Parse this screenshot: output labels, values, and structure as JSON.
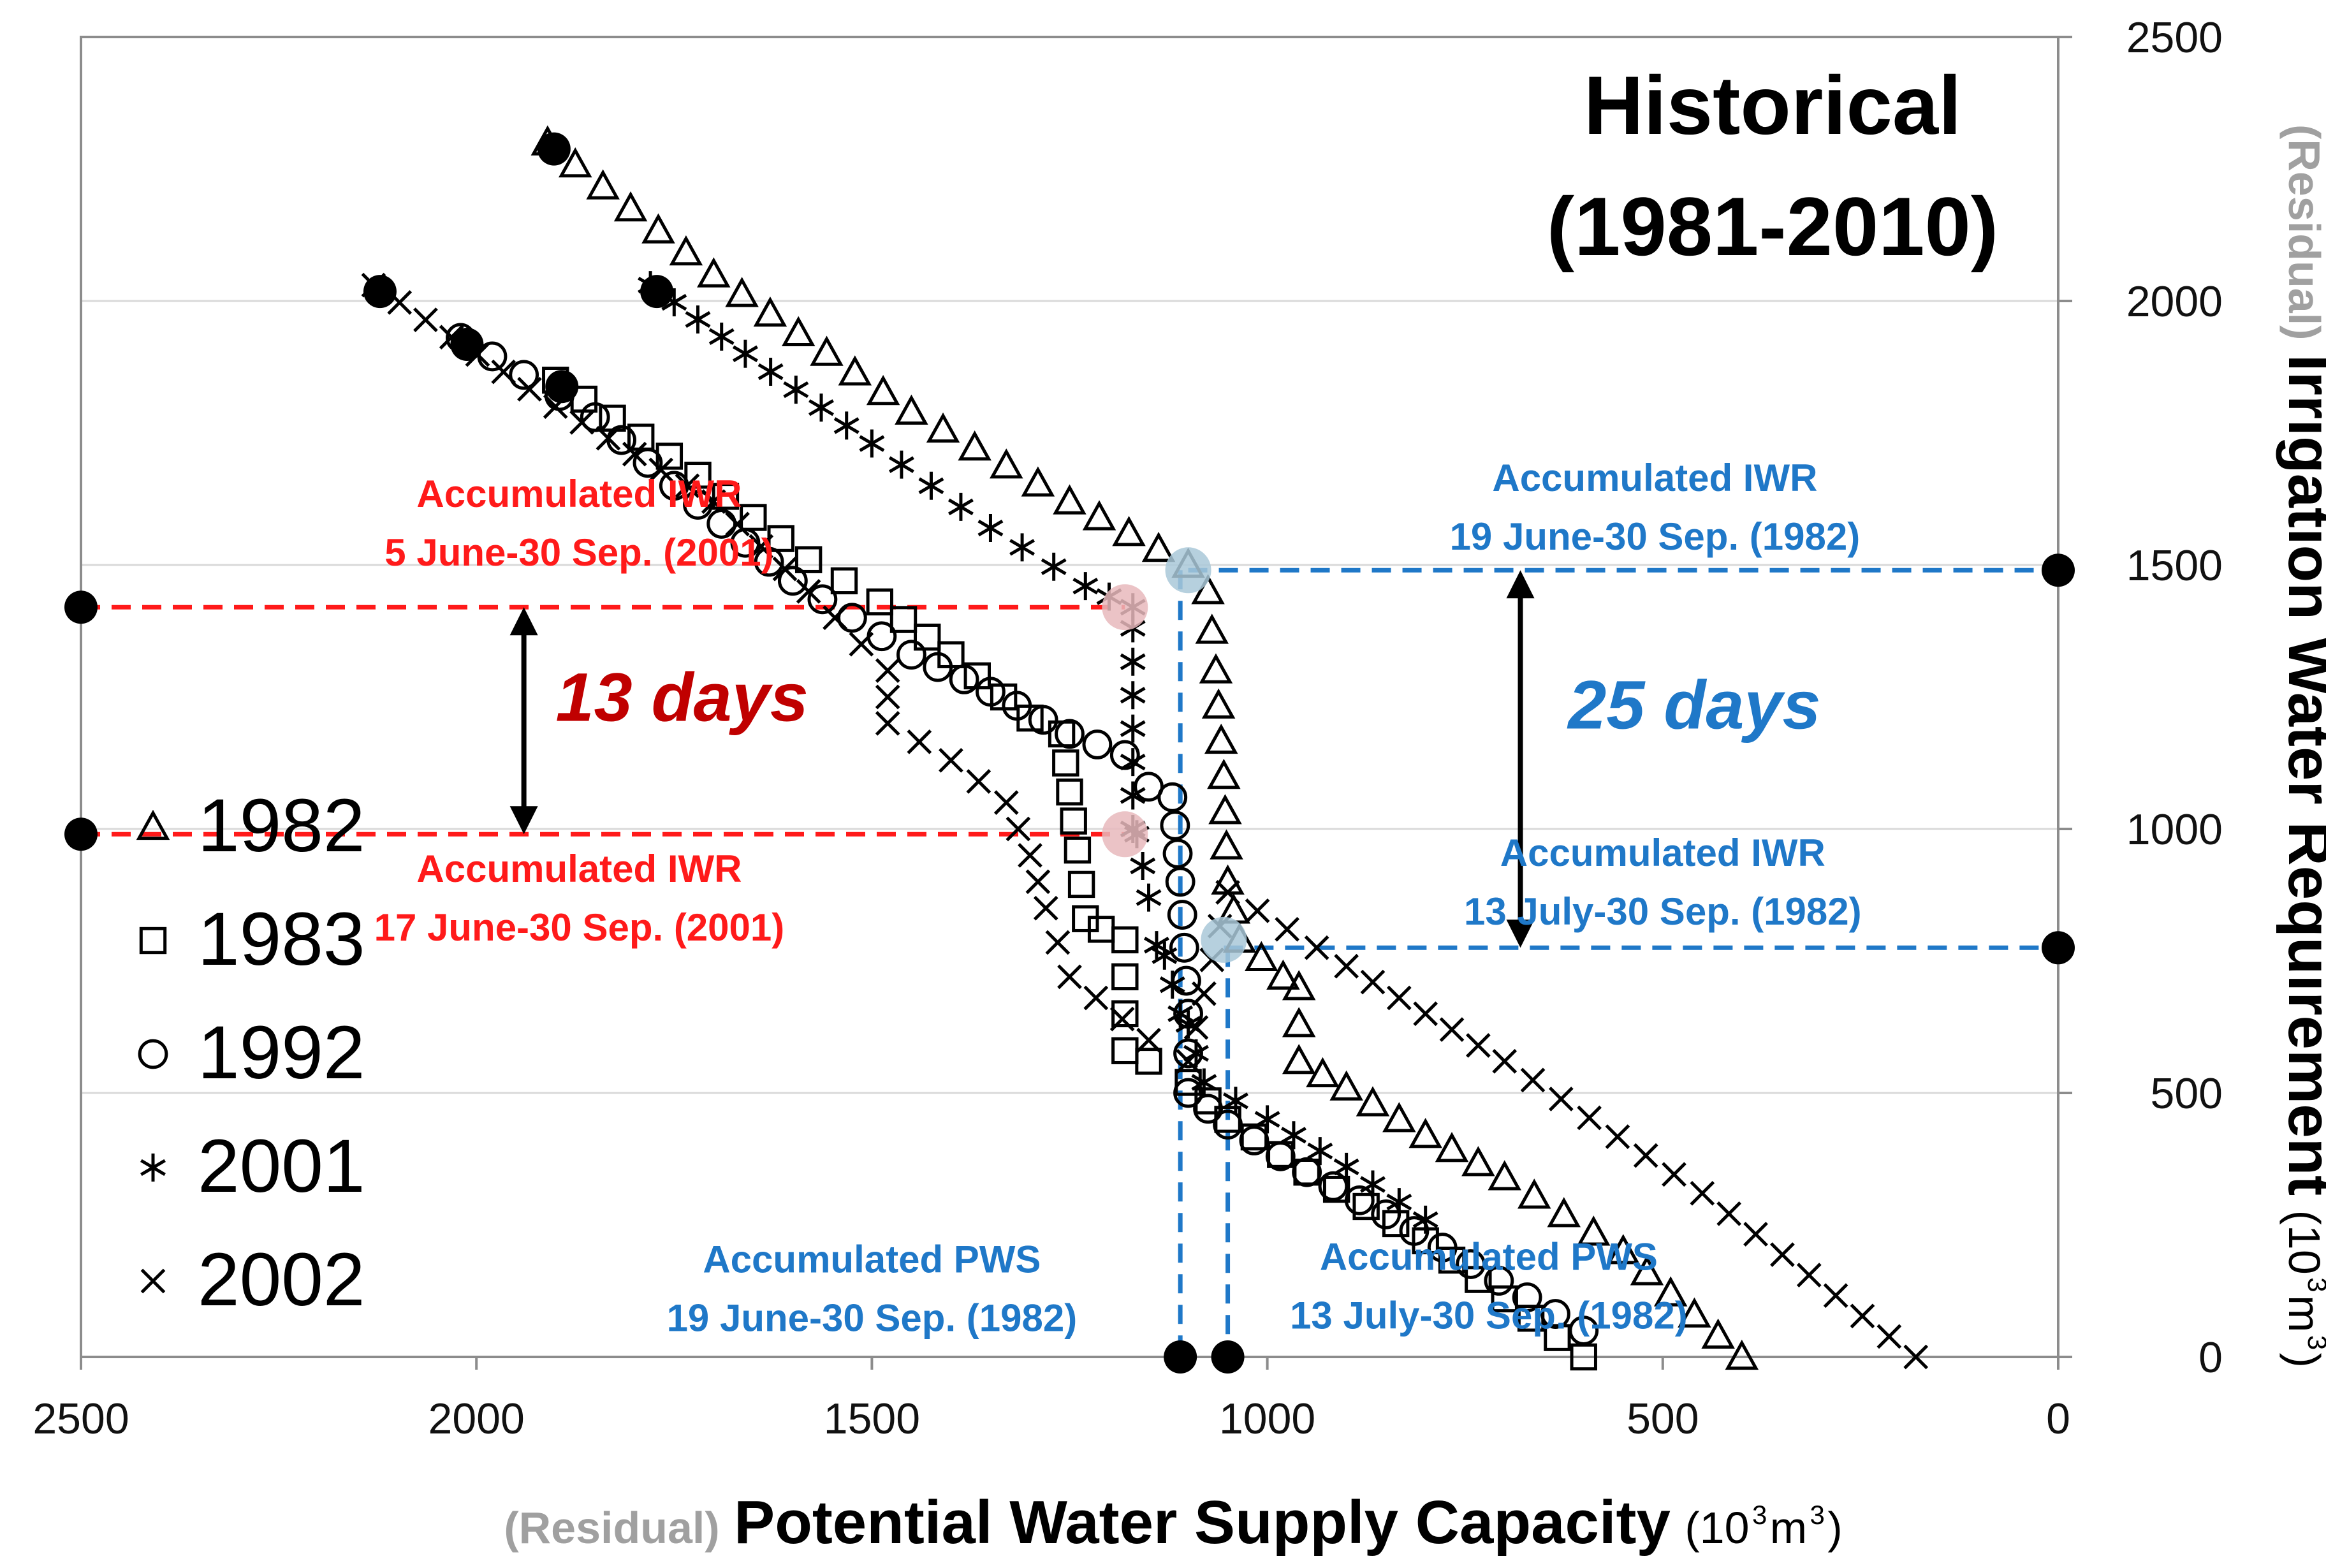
{
  "chart_data": {
    "type": "scatter",
    "title_lines": [
      "Historical",
      "(1981-2010)"
    ],
    "xlabel": {
      "prefix": "(Residual)",
      "main": "Potential Water Supply Capacity",
      "unit_open": "(10",
      "unit_sup1": "3",
      "unit_mid": " m",
      "unit_sup2": "3",
      "unit_close": ")"
    },
    "ylabel": {
      "prefix": "(Residual)",
      "main": "Irrigation Water Requirement",
      "unit_open": "(10",
      "unit_sup1": "3",
      "unit_mid": " m",
      "unit_sup2": "3",
      "unit_close": ")"
    },
    "xlim": [
      2500,
      0
    ],
    "ylim": [
      0,
      2500
    ],
    "x_ticks": [
      "2500",
      "2000",
      "1500",
      "1000",
      "500",
      "0"
    ],
    "y_ticks": [
      "0",
      "500",
      "1000",
      "1500",
      "2000",
      "2500"
    ],
    "grid": "horizontal",
    "legend": {
      "position": "lower-left",
      "entries": [
        {
          "year": "1982",
          "marker": "triangle"
        },
        {
          "year": "1983",
          "marker": "square"
        },
        {
          "year": "1992",
          "marker": "circle"
        },
        {
          "year": "2001",
          "marker": "asterisk"
        },
        {
          "year": "2002",
          "marker": "cross"
        }
      ]
    },
    "series": [
      {
        "name": "1982",
        "marker": "triangle",
        "points": [
          [
            1910,
            2300
          ],
          [
            1700,
            2050
          ],
          [
            1450,
            1790
          ],
          [
            1250,
            1620
          ],
          [
            1100,
            1500
          ],
          [
            1075,
            1450
          ],
          [
            1065,
            1300
          ],
          [
            1055,
            1100
          ],
          [
            1050,
            900
          ],
          [
            1035,
            790
          ],
          [
            980,
            720
          ],
          [
            960,
            700
          ],
          [
            960,
            560
          ],
          [
            900,
            510
          ],
          [
            800,
            420
          ],
          [
            700,
            340
          ],
          [
            550,
            200
          ],
          [
            400,
            0
          ]
        ]
      },
      {
        "name": "1983",
        "marker": "square",
        "points": [
          [
            1900,
            1850
          ],
          [
            1720,
            1670
          ],
          [
            1580,
            1510
          ],
          [
            1490,
            1430
          ],
          [
            1400,
            1330
          ],
          [
            1300,
            1210
          ],
          [
            1260,
            1180
          ],
          [
            1240,
            960
          ],
          [
            1230,
            830
          ],
          [
            1210,
            810
          ],
          [
            1180,
            790
          ],
          [
            1180,
            580
          ],
          [
            1150,
            560
          ],
          [
            1100,
            520
          ],
          [
            1050,
            450
          ],
          [
            950,
            350
          ],
          [
            800,
            220
          ],
          [
            600,
            0
          ]
        ]
      },
      {
        "name": "1992",
        "marker": "circle",
        "points": [
          [
            2020,
            1930
          ],
          [
            1940,
            1860
          ],
          [
            1850,
            1780
          ],
          [
            1750,
            1650
          ],
          [
            1600,
            1470
          ],
          [
            1450,
            1330
          ],
          [
            1350,
            1260
          ],
          [
            1250,
            1180
          ],
          [
            1180,
            1140
          ],
          [
            1150,
            1080
          ],
          [
            1120,
            1060
          ],
          [
            1110,
            900
          ],
          [
            1100,
            650
          ],
          [
            1100,
            500
          ],
          [
            1050,
            440
          ],
          [
            950,
            350
          ],
          [
            850,
            270
          ],
          [
            600,
            50
          ]
        ]
      },
      {
        "name": "2001",
        "marker": "asterisk",
        "points": [
          [
            1780,
            2030
          ],
          [
            1660,
            1900
          ],
          [
            1500,
            1730
          ],
          [
            1350,
            1570
          ],
          [
            1230,
            1460
          ],
          [
            1170,
            1420
          ],
          [
            1170,
            1380
          ],
          [
            1170,
            1000
          ],
          [
            1165,
            990
          ],
          [
            1150,
            870
          ],
          [
            1140,
            780
          ],
          [
            1130,
            760
          ],
          [
            1110,
            650
          ],
          [
            1100,
            630
          ],
          [
            1080,
            520
          ],
          [
            1000,
            450
          ],
          [
            900,
            360
          ],
          [
            800,
            260
          ]
        ]
      },
      {
        "name": "2002",
        "marker": "cross",
        "points": [
          [
            2130,
            2030
          ],
          [
            1900,
            1800
          ],
          [
            1700,
            1620
          ],
          [
            1580,
            1450
          ],
          [
            1480,
            1300
          ],
          [
            1480,
            1200
          ],
          [
            1400,
            1130
          ],
          [
            1330,
            1050
          ],
          [
            1300,
            950
          ],
          [
            1280,
            850
          ],
          [
            1250,
            720
          ],
          [
            1150,
            600
          ],
          [
            1100,
            560
          ],
          [
            1050,
            880
          ],
          [
            900,
            740
          ],
          [
            700,
            560
          ],
          [
            450,
            310
          ],
          [
            180,
            0
          ]
        ]
      }
    ],
    "highlights": [
      {
        "x": 1180,
        "y": 1420,
        "color": "#e8b8bc"
      },
      {
        "x": 1180,
        "y": 990,
        "color": "#e8b8bc"
      },
      {
        "x": 1100,
        "y": 1490,
        "color": "#a9c8d8"
      },
      {
        "x": 1055,
        "y": 790,
        "color": "#a9c8d8"
      }
    ],
    "reference_lines": [
      {
        "axis": "y",
        "value": 1420,
        "x_from": 2500,
        "x_to": 1180,
        "color": "#ff1a1a"
      },
      {
        "axis": "y",
        "value": 990,
        "x_from": 2500,
        "x_to": 1180,
        "color": "#ff1a1a"
      },
      {
        "axis": "y",
        "value": 1490,
        "x_from": 1100,
        "x_to": 0,
        "color": "#1f78c8"
      },
      {
        "axis": "y",
        "value": 775,
        "x_from": 1055,
        "x_to": 0,
        "color": "#1f78c8"
      },
      {
        "axis": "x",
        "value": 1110,
        "y_from": 1490,
        "y_to": 0,
        "color": "#1f78c8"
      },
      {
        "axis": "x",
        "value": 1050,
        "y_from": 775,
        "y_to": 0,
        "color": "#1f78c8"
      }
    ],
    "endpoint_dots": [
      {
        "x": 2500,
        "y": 1420
      },
      {
        "x": 2500,
        "y": 990
      },
      {
        "x": 0,
        "y": 1490
      },
      {
        "x": 0,
        "y": 775
      },
      {
        "x": 1110,
        "y": 0
      },
      {
        "x": 1050,
        "y": 0
      }
    ],
    "arrows": [
      {
        "x": 1940,
        "y_from": 1420,
        "y_to": 990,
        "label": "13 days",
        "label_color": "#c00000",
        "label_x": 1740,
        "label_y": 1205
      },
      {
        "x": 680,
        "y_from": 1490,
        "y_to": 775,
        "label": "25 days",
        "label_color": "#1f78c8",
        "label_x": 460,
        "label_y": 1190
      }
    ],
    "annotations": [
      {
        "lines": [
          "Accumulated IWR",
          "5 June-30 Sep. (2001)"
        ],
        "color": "#ff1a1a",
        "x": 1870,
        "y": 1610
      },
      {
        "lines": [
          "Accumulated IWR",
          "17 June-30 Sep. (2001)"
        ],
        "color": "#ff1a1a",
        "x": 1870,
        "y": 900
      },
      {
        "lines": [
          "Accumulated IWR",
          "19 June-30 Sep. (1982)"
        ],
        "color": "#1f78c8",
        "x": 510,
        "y": 1640
      },
      {
        "lines": [
          "Accumulated IWR",
          "13 July-30 Sep. (1982)"
        ],
        "color": "#1f78c8",
        "x": 500,
        "y": 930
      },
      {
        "lines": [
          "Accumulated PWS",
          "19 June-30 Sep. (1982)"
        ],
        "color": "#1f78c8",
        "x": 1500,
        "y": 160
      },
      {
        "lines": [
          "Accumulated PWS",
          "13 July-30 Sep. (1982)"
        ],
        "color": "#1f78c8",
        "x": 720,
        "y": 165
      }
    ]
  }
}
